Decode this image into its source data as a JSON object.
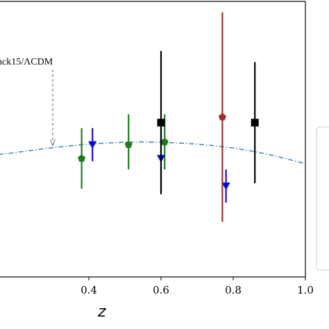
{
  "chart_data": {
    "type": "scatter",
    "xlabel": "z",
    "xlim": [
      0.15,
      1.0
    ],
    "ylim": [
      0.0,
      1.0
    ],
    "x_ticks": [
      "0.4",
      "0.6",
      "0.8",
      "1.0"
    ],
    "x_tick_values": [
      0.4,
      0.6,
      0.8,
      1.0
    ],
    "grid": false,
    "annotation": {
      "text": "nck15/ΛCDM",
      "points_to_x": 0.3
    },
    "model_curve": {
      "style": "dash-dot",
      "color": "#2e7bb0",
      "x": [
        0.15,
        0.2,
        0.25,
        0.3,
        0.35,
        0.4,
        0.45,
        0.5,
        0.55,
        0.6,
        0.65,
        0.7,
        0.75,
        0.8,
        0.85,
        0.9,
        0.95,
        1.0
      ],
      "y": [
        0.444,
        0.452,
        0.461,
        0.469,
        0.476,
        0.482,
        0.486,
        0.489,
        0.49,
        0.489,
        0.486,
        0.482,
        0.476,
        0.468,
        0.457,
        0.444,
        0.428,
        0.411
      ]
    },
    "series": [
      {
        "marker": "pentagon",
        "color": "#1f7a1f",
        "points": [
          {
            "x": 0.38,
            "y": 0.43,
            "lo": 0.32,
            "hi": 0.54
          },
          {
            "x": 0.51,
            "y": 0.48,
            "lo": 0.39,
            "hi": 0.59
          },
          {
            "x": 0.61,
            "y": 0.49,
            "lo": 0.39,
            "hi": 0.59
          }
        ]
      },
      {
        "marker": "triangle-down",
        "color": "#0a0ad8",
        "points": [
          {
            "x": 0.41,
            "y": 0.48,
            "lo": 0.42,
            "hi": 0.54
          },
          {
            "x": 0.6,
            "y": 0.43,
            "lo": 0.31,
            "hi": 0.54
          },
          {
            "x": 0.78,
            "y": 0.33,
            "lo": 0.27,
            "hi": 0.39
          }
        ]
      },
      {
        "marker": "square",
        "color": "#000000",
        "points": [
          {
            "x": 0.6,
            "y": 0.56,
            "lo": 0.3,
            "hi": 0.82
          },
          {
            "x": 0.86,
            "y": 0.56,
            "lo": 0.34,
            "hi": 0.78
          }
        ]
      },
      {
        "marker": "pentagon",
        "color": "#a52a2a",
        "points": [
          {
            "x": 0.77,
            "y": 0.58,
            "lo": 0.2,
            "hi": 0.96
          }
        ]
      }
    ],
    "legend": {
      "placement": "right",
      "entries": []
    }
  }
}
